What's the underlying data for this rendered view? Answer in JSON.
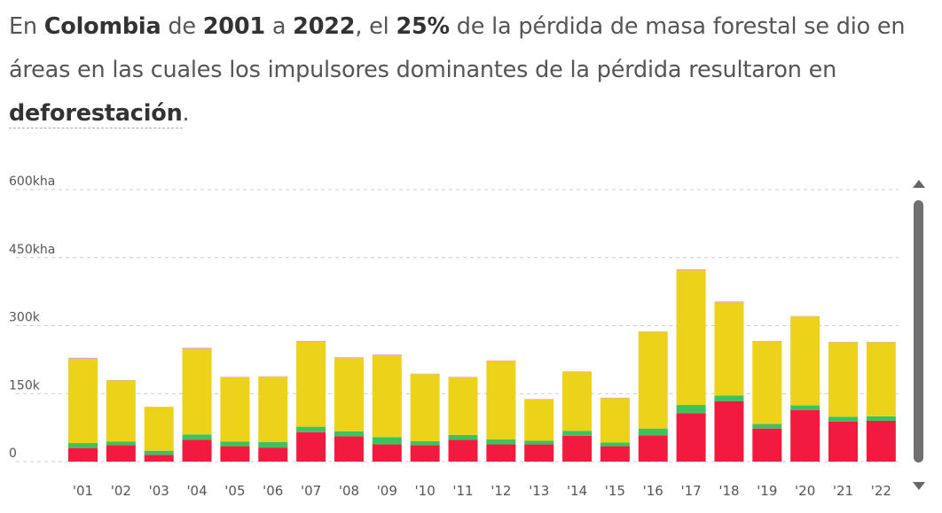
{
  "headline": {
    "p1": "En ",
    "country": "Colombia",
    "p2": " de ",
    "year_start": "2001",
    "p3": " a ",
    "year_end": "2022",
    "p4": ", el ",
    "percent": "25%",
    "p5": " de la pérdida de masa forestal se dio en áreas en las cuales los impulsores dominantes de la pérdida resultaron en ",
    "driver": "deforestación",
    "p6": "."
  },
  "colors": {
    "deforestation": "#f21b3f",
    "green": "#3cc35e",
    "yellow": "#edd21a",
    "pink": "#e68fd6",
    "grid": "#cccccc",
    "tick_text": "#555555"
  },
  "chart_data": {
    "type": "bar",
    "stacked": true,
    "categories": [
      "'01",
      "'02",
      "'03",
      "'04",
      "'05",
      "'06",
      "'07",
      "'08",
      "'09",
      "'10",
      "'11",
      "'12",
      "'13",
      "'14",
      "'15",
      "'16",
      "'17",
      "'18",
      "'19",
      "'20",
      "'21",
      "'22"
    ],
    "series": [
      {
        "color_key": "deforestation",
        "values": [
          30,
          36,
          15,
          48,
          34,
          31,
          65,
          56,
          38,
          36,
          48,
          38,
          38,
          57,
          34,
          58,
          107,
          133,
          73,
          114,
          88,
          90
        ]
      },
      {
        "color_key": "green",
        "values": [
          11,
          8,
          9,
          12,
          10,
          12,
          12,
          11,
          16,
          9,
          11,
          11,
          8,
          11,
          8,
          15,
          18,
          13,
          10,
          10,
          11,
          10
        ]
      },
      {
        "color_key": "yellow",
        "values": [
          186,
          135,
          97,
          189,
          142,
          144,
          187,
          161,
          180,
          148,
          127,
          173,
          91,
          130,
          98,
          213,
          297,
          205,
          182,
          196,
          164,
          163
        ]
      },
      {
        "color_key": "pink",
        "values": [
          2,
          1,
          0,
          2,
          1,
          1,
          2,
          2,
          2,
          1,
          1,
          1,
          1,
          1,
          1,
          1,
          2,
          2,
          1,
          1,
          1,
          1
        ]
      }
    ],
    "y_ticks": [
      {
        "value": 0,
        "label": "0"
      },
      {
        "value": 150,
        "label": "150k"
      },
      {
        "value": 300,
        "label": "300k"
      },
      {
        "value": 450,
        "label": "450kha"
      },
      {
        "value": 600,
        "label": "600kha"
      }
    ],
    "ylim": [
      0,
      600
    ],
    "grid": true,
    "title": "",
    "xlabel": "",
    "ylabel": ""
  },
  "scrollbar": {
    "up_icon": "triangle-up-icon",
    "down_icon": "triangle-down-icon"
  }
}
